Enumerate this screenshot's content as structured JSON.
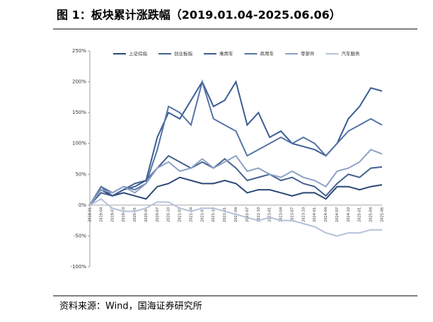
{
  "chart_data": {
    "type": "line",
    "title": "图 1：板块累计涨跌幅（2019.01.04-2025.06.06）",
    "source": "资料来源：Wind，国海证券研究所",
    "categories": [
      "2019-01",
      "2019-04",
      "2019-07",
      "2019-10",
      "2020-01",
      "2020-04",
      "2020-07",
      "2020-10",
      "2021-01",
      "2021-04",
      "2021-07",
      "2021-10",
      "2022-01",
      "2022-04",
      "2022-07",
      "2022-10",
      "2023-01",
      "2023-04",
      "2023-07",
      "2023-10",
      "2024-01",
      "2024-04",
      "2024-07",
      "2024-10",
      "2025-01",
      "2025-04",
      "2025-06"
    ],
    "series": [
      {
        "name": "上证综指",
        "color": "#2b4875",
        "values": [
          0,
          25,
          15,
          20,
          15,
          10,
          30,
          35,
          45,
          40,
          35,
          35,
          40,
          35,
          20,
          25,
          25,
          20,
          15,
          20,
          20,
          10,
          30,
          30,
          25,
          30,
          33
        ]
      },
      {
        "name": "创业板指",
        "color": "#44628f",
        "values": [
          0,
          20,
          15,
          25,
          35,
          40,
          60,
          80,
          70,
          60,
          70,
          60,
          75,
          60,
          40,
          45,
          50,
          40,
          45,
          35,
          30,
          15,
          35,
          50,
          45,
          60,
          62
        ]
      },
      {
        "name": "乘用车",
        "color": "#3c5d95",
        "values": [
          0,
          30,
          15,
          25,
          30,
          40,
          110,
          150,
          140,
          170,
          200,
          160,
          170,
          200,
          130,
          150,
          110,
          120,
          100,
          95,
          90,
          80,
          100,
          140,
          160,
          190,
          185
        ]
      },
      {
        "name": "商用车",
        "color": "#5674a6",
        "values": [
          0,
          30,
          20,
          30,
          25,
          35,
          90,
          160,
          150,
          130,
          200,
          140,
          130,
          120,
          80,
          90,
          100,
          110,
          100,
          110,
          100,
          80,
          100,
          120,
          130,
          140,
          130
        ]
      },
      {
        "name": "零部件",
        "color": "#8ea2c4",
        "values": [
          0,
          25,
          20,
          30,
          20,
          35,
          60,
          70,
          55,
          60,
          75,
          60,
          70,
          80,
          55,
          60,
          50,
          45,
          55,
          45,
          40,
          30,
          55,
          60,
          70,
          90,
          83
        ]
      },
      {
        "name": "汽车服务",
        "color": "#b5c1d9",
        "values": [
          0,
          10,
          -5,
          -10,
          -10,
          -5,
          5,
          5,
          -5,
          -10,
          -5,
          -5,
          -10,
          -15,
          -20,
          -25,
          -20,
          -25,
          -25,
          -30,
          -35,
          -45,
          -50,
          -45,
          -45,
          -40,
          -40
        ]
      }
    ],
    "ylim": [
      -100,
      250
    ],
    "yticks": [
      {
        "value": -100,
        "label": "-100%"
      },
      {
        "value": -50,
        "label": "-50%"
      },
      {
        "value": 0,
        "label": "0%"
      },
      {
        "value": 50,
        "label": "50%"
      },
      {
        "value": 100,
        "label": "100%"
      },
      {
        "value": 150,
        "label": "150%"
      },
      {
        "value": 200,
        "label": "200%"
      },
      {
        "value": 250,
        "label": "250%"
      }
    ]
  }
}
